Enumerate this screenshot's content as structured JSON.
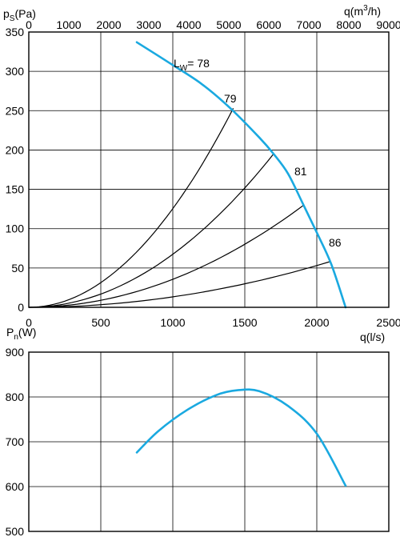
{
  "chart_data": [
    {
      "type": "line",
      "title": "",
      "xlabel": "q(l/s)",
      "x2label": "q(m3/h)",
      "ylabel": "ps(Pa)",
      "xlim": [
        0,
        2500
      ],
      "ylim": [
        0,
        350
      ],
      "x2lim": [
        0,
        9000
      ],
      "xticks": [
        0,
        500,
        1000,
        1500,
        2000,
        2500
      ],
      "x2ticks": [
        0,
        1000,
        2000,
        3000,
        4000,
        5000,
        6000,
        7000,
        8000,
        9000
      ],
      "yticks": [
        0,
        50,
        100,
        150,
        200,
        250,
        300,
        350
      ],
      "grid": true,
      "fan_curve": {
        "color": "#1aa9e0",
        "points": [
          [
            750,
            337
          ],
          [
            1000,
            308
          ],
          [
            1200,
            284
          ],
          [
            1400,
            253
          ],
          [
            1600,
            216
          ],
          [
            1700,
            195
          ],
          [
            1800,
            170
          ],
          [
            1900,
            133
          ],
          [
            2000,
            95
          ],
          [
            2100,
            55
          ],
          [
            2200,
            0
          ]
        ]
      },
      "system_curves": [
        {
          "label": "79",
          "end": [
            1420,
            253
          ]
        },
        {
          "label": "",
          "end": [
            1700,
            195
          ]
        },
        {
          "label": "81",
          "end": [
            1910,
            130
          ]
        },
        {
          "label": "86",
          "end": [
            2090,
            58
          ]
        }
      ],
      "annotations": {
        "lw_label": "Lw= 78",
        "lw_main": "L",
        "lw_sub": "W",
        "lw_value": "= 78"
      }
    },
    {
      "type": "line",
      "title": "",
      "xlabel": "",
      "ylabel": "Pn(W)",
      "xlim": [
        0,
        2500
      ],
      "ylim": [
        500,
        900
      ],
      "yticks": [
        500,
        600,
        700,
        800,
        900
      ],
      "grid": true,
      "series": [
        {
          "color": "#1aa9e0",
          "x": [
            750,
            900,
            1100,
            1300,
            1450,
            1600,
            1800,
            2000,
            2200
          ],
          "y": [
            676,
            724,
            771,
            804,
            815,
            813,
            780,
            718,
            602
          ]
        }
      ]
    }
  ],
  "labels": {
    "ps_main": "p",
    "ps_sub": "S",
    "ps_unit": "(Pa)",
    "q_m3h_main": "q(m",
    "q_m3h_sup": "3",
    "q_m3h_end": "/h)",
    "q_ls": "q(l/s)",
    "pn_main": "P",
    "pn_sub": "n",
    "pn_unit": "(W)"
  }
}
